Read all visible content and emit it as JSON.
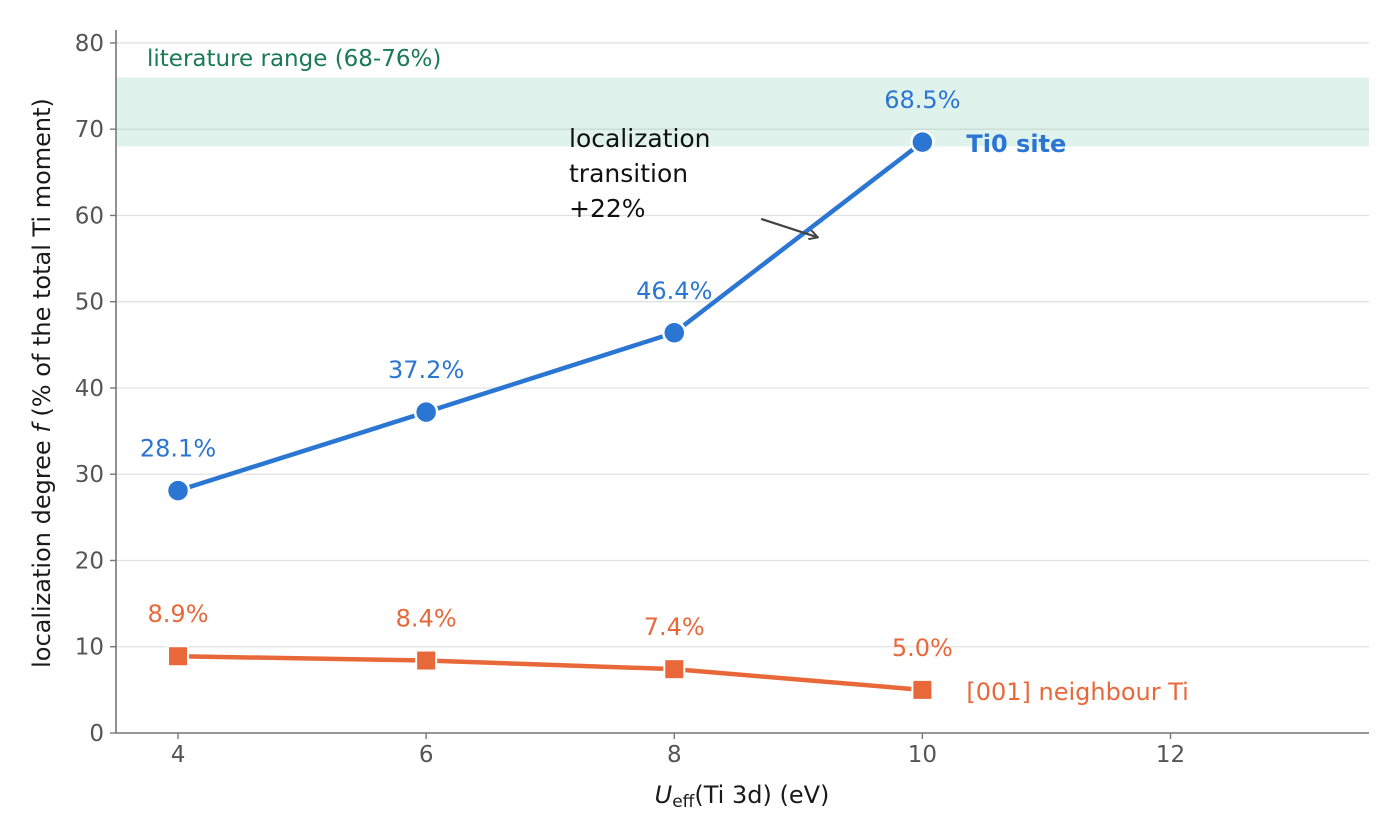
{
  "chart_data": {
    "type": "line",
    "x": [
      4,
      6,
      8,
      10
    ],
    "xlim": [
      3.5,
      13.6
    ],
    "ylim": [
      0,
      81.5
    ],
    "xticks": [
      4,
      6,
      8,
      10,
      12
    ],
    "yticks": [
      0,
      10,
      20,
      30,
      40,
      50,
      60,
      70,
      80
    ],
    "xlabel": {
      "symbol": "U",
      "subscript": "eff",
      "rest": "(Ti 3d)  (eV)"
    },
    "ylabel": {
      "prefix": "localization degree ",
      "italic": "f",
      "suffix": " (% of the total Ti moment)"
    },
    "grid": "horizontal",
    "series": [
      {
        "name": "Ti0 site",
        "color": "#2b76d2",
        "marker": "circle",
        "values": [
          28.1,
          37.2,
          46.4,
          68.5
        ],
        "labels": [
          "28.1%",
          "37.2%",
          "46.4%",
          "68.5%"
        ]
      },
      {
        "name": "[001] neighbour Ti",
        "color": "#e8683a",
        "marker": "square",
        "values": [
          8.9,
          8.4,
          7.4,
          5.0
        ],
        "labels": [
          "8.9%",
          "8.4%",
          "7.4%",
          "5.0%"
        ]
      }
    ],
    "bands": [
      {
        "label": "literature range (68-76%)",
        "y_range": [
          68,
          76
        ],
        "fill_color": "#dff3ec",
        "text_color": "#1a7a55"
      }
    ],
    "reference_lines": [
      70
    ],
    "annotations": [
      {
        "lines": [
          "localization",
          "transition",
          "+22%"
        ],
        "arrow_from": [
          8.7,
          59.6
        ],
        "arrow_to": [
          9.15,
          57.5
        ]
      }
    ]
  }
}
